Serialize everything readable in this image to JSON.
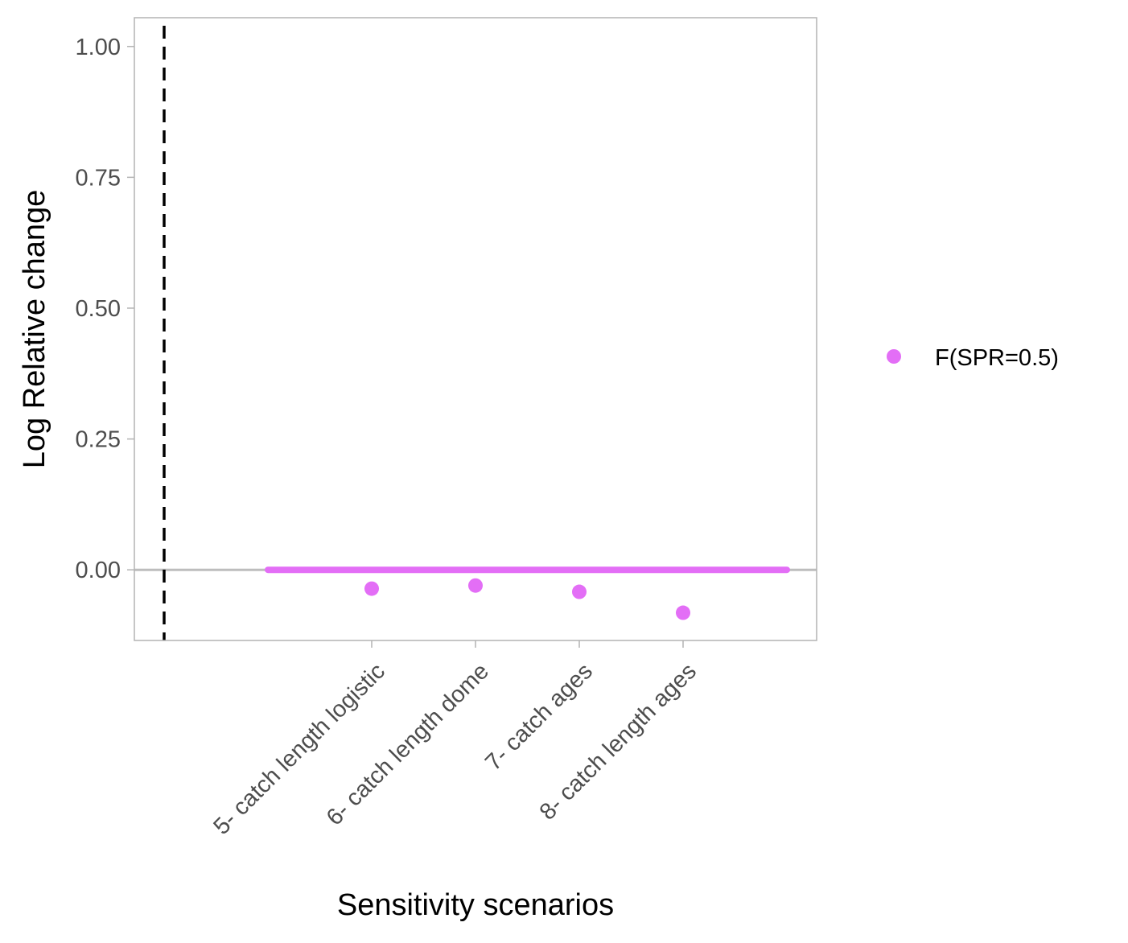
{
  "chart_data": {
    "type": "scatter",
    "title": "",
    "xlabel": "Sensitivity scenarios",
    "ylabel": "Log Relative change",
    "categories": [
      "5- catch length logistic",
      "6- catch length dome",
      "7- catch ages",
      "8- catch length ages"
    ],
    "series": [
      {
        "name": "F(SPR=0.5)",
        "color": "#E36EF6",
        "values": [
          -0.036,
          -0.03,
          -0.042,
          -0.082
        ]
      }
    ],
    "yticks": [
      0.0,
      0.25,
      0.5,
      0.75,
      1.0
    ],
    "ytick_labels": [
      "0.00",
      "0.25",
      "0.50",
      "0.75",
      "1.00"
    ],
    "ylim": [
      -0.135,
      1.055
    ],
    "reference_line_y": 0.0,
    "series_mean_segment": {
      "y": 0.0,
      "color": "#E36EF6"
    },
    "dashed_vertical_line": "left of first scenario",
    "grid": false,
    "legend_position": "right",
    "colors": {
      "reference_line": "#bdbdbd",
      "panel_border": "#b3b3b3",
      "dashed_line": "#000000"
    }
  }
}
